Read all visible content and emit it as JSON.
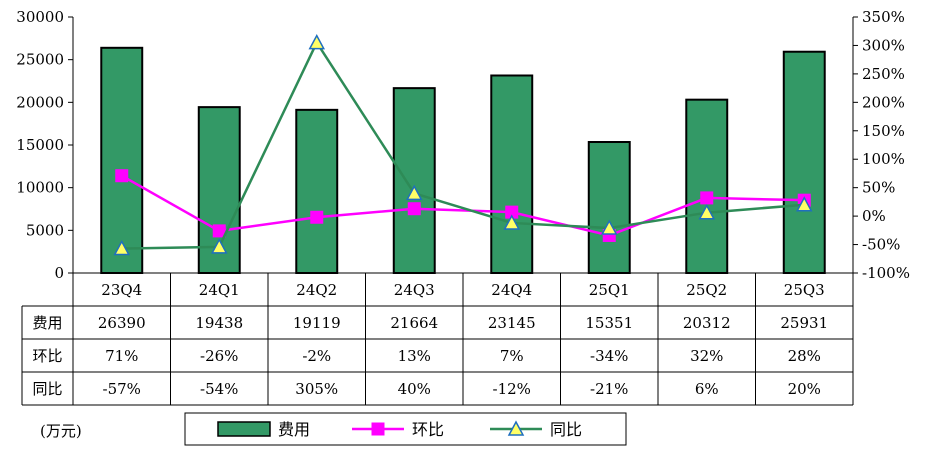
{
  "chart_data": {
    "type": "bar",
    "categories": [
      "23Q4",
      "24Q1",
      "24Q2",
      "24Q3",
      "24Q4",
      "25Q1",
      "25Q2",
      "25Q3"
    ],
    "series": [
      {
        "name": "费用",
        "type": "bar",
        "axis": "left",
        "values": [
          26390,
          19438,
          19119,
          21664,
          23145,
          15351,
          20312,
          25931
        ],
        "color": "#339966"
      },
      {
        "name": "环比",
        "type": "line",
        "axis": "right",
        "values": [
          71,
          -26,
          -2,
          13,
          7,
          -34,
          32,
          28
        ],
        "color": "#ff00ff",
        "marker": "square"
      },
      {
        "name": "同比",
        "type": "line",
        "axis": "right",
        "values": [
          -57,
          -54,
          305,
          40,
          -12,
          -21,
          6,
          20
        ],
        "color": "#2e8b57",
        "marker": "triangle"
      }
    ],
    "y_left": {
      "min": 0,
      "max": 30000,
      "step": 5000
    },
    "y_right": {
      "min": -100,
      "max": 350,
      "step": 50,
      "suffix": "%"
    },
    "table_rows": [
      {
        "label": "费用",
        "cells": [
          "26390",
          "19438",
          "19119",
          "21664",
          "23145",
          "15351",
          "20312",
          "25931"
        ]
      },
      {
        "label": "环比",
        "cells": [
          "71%",
          "-26%",
          "-2%",
          "13%",
          "7%",
          "-34%",
          "32%",
          "28%"
        ]
      },
      {
        "label": "同比",
        "cells": [
          "-57%",
          "-54%",
          "305%",
          "40%",
          "-12%",
          "-21%",
          "6%",
          "20%"
        ]
      }
    ],
    "unit_label": "(万元)",
    "legend": {
      "position": "bottom",
      "items": [
        "费用",
        "环比",
        "同比"
      ]
    },
    "grid": false
  }
}
